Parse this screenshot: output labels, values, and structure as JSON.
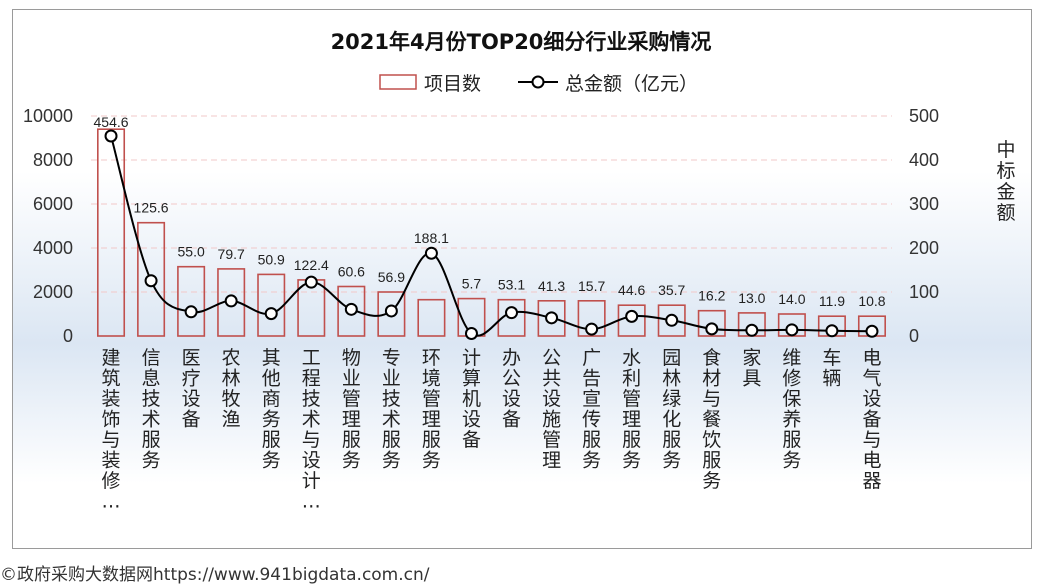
{
  "chart_data": {
    "type": "bar",
    "title": "2021年4月份TOP20细分行业采购情况",
    "categories": [
      "建筑装饰与装修…",
      "信息技术服务",
      "医疗设备",
      "农林牧渔",
      "其他商务服务",
      "工程技术与设计…",
      "物业管理服务",
      "专业技术服务",
      "环境管理服务",
      "计算机设备",
      "办公设备",
      "公共设施管理",
      "广告宣传服务",
      "水利管理服务",
      "园林绿化服务",
      "食材与餐饮服务",
      "家具",
      "维修保养服务",
      "车辆",
      "电气设备与电器"
    ],
    "series": [
      {
        "name": "项目数",
        "type": "bar",
        "axis": "left",
        "color": "#c0504d",
        "values": [
          9400,
          5150,
          3150,
          3050,
          2800,
          2550,
          2250,
          2000,
          1650,
          1700,
          1650,
          1600,
          1600,
          1400,
          1400,
          1150,
          1050,
          1000,
          900,
          900
        ]
      },
      {
        "name": "总金额（亿元）",
        "type": "line",
        "axis": "right",
        "color": "#000000",
        "values": [
          454.6,
          125.6,
          55.0,
          79.7,
          50.9,
          122.4,
          60.6,
          56.9,
          188.1,
          5.7,
          53.1,
          41.3,
          15.7,
          44.6,
          35.7,
          16.2,
          13.0,
          14.0,
          11.9,
          10.8
        ],
        "labels": [
          "454.6",
          "125.6",
          "55.0",
          "79.7",
          "50.9",
          "122.4",
          "60.6",
          "56.9",
          "188.1",
          "5.7",
          "53.1",
          "41.3",
          "15.7",
          "44.6",
          "35.7",
          "16.2",
          "13.0",
          "14.0",
          "11.9",
          "10.8"
        ]
      }
    ],
    "ylim_left": [
      0,
      10000
    ],
    "ylim_right": [
      0,
      500
    ],
    "left_ticks": [
      "0",
      "2000",
      "4000",
      "6000",
      "8000",
      "10000"
    ],
    "right_ticks": [
      "0",
      "100",
      "200",
      "300",
      "400",
      "500"
    ],
    "ylabel_right": "中标金额",
    "grid": "horizontal dashed",
    "legend": "top-center"
  },
  "colors": {
    "bar_edge": "#c0504d",
    "line": "#000000",
    "grid": "#f2c8c8"
  },
  "source": "©政府采购大数据网https://www.941bigdata.com.cn/"
}
